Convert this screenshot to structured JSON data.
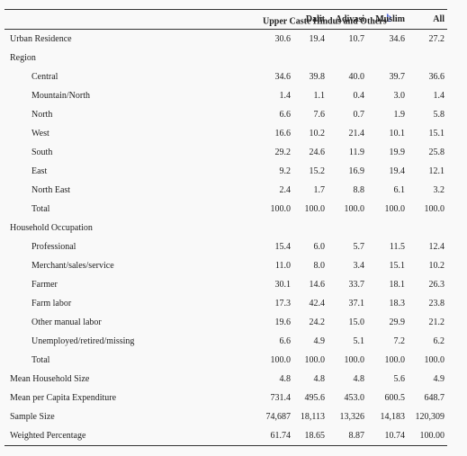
{
  "table": {
    "columns": [
      "Upper Caste Hindus and Others",
      "Dalit",
      "Adivasi",
      "Muslim",
      "All"
    ],
    "footnote": "b",
    "rows": [
      {
        "label": "Urban Residence",
        "values": [
          "30.6",
          "19.4",
          "10.7",
          "34.6",
          "27.2"
        ]
      },
      {
        "label": "Region",
        "subrows": [
          {
            "label": "Central",
            "values": [
              "34.6",
              "39.8",
              "40.0",
              "39.7",
              "36.6"
            ]
          },
          {
            "label": "Mountain/North",
            "values": [
              "1.4",
              "1.1",
              "0.4",
              "3.0",
              "1.4"
            ]
          },
          {
            "label": "North",
            "values": [
              "6.6",
              "7.6",
              "0.7",
              "1.9",
              "5.8"
            ]
          },
          {
            "label": "West",
            "values": [
              "16.6",
              "10.2",
              "21.4",
              "10.1",
              "15.1"
            ]
          },
          {
            "label": "South",
            "values": [
              "29.2",
              "24.6",
              "11.9",
              "19.9",
              "25.8"
            ]
          },
          {
            "label": "East",
            "values": [
              "9.2",
              "15.2",
              "16.9",
              "19.4",
              "12.1"
            ]
          },
          {
            "label": "North East",
            "values": [
              "2.4",
              "1.7",
              "8.8",
              "6.1",
              "3.2"
            ]
          },
          {
            "label": "Total",
            "values": [
              "100.0",
              "100.0",
              "100.0",
              "100.0",
              "100.0"
            ]
          }
        ]
      },
      {
        "label": "Household Occupation",
        "subrows": [
          {
            "label": "Professional",
            "values": [
              "15.4",
              "6.0",
              "5.7",
              "11.5",
              "12.4"
            ]
          },
          {
            "label": "Merchant/sales/service",
            "values": [
              "11.0",
              "8.0",
              "3.4",
              "15.1",
              "10.2"
            ]
          },
          {
            "label": "Farmer",
            "values": [
              "30.1",
              "14.6",
              "33.7",
              "18.1",
              "26.3"
            ]
          },
          {
            "label": "Farm labor",
            "values": [
              "17.3",
              "42.4",
              "37.1",
              "18.3",
              "23.8"
            ]
          },
          {
            "label": "Other manual labor",
            "values": [
              "19.6",
              "24.2",
              "15.0",
              "29.9",
              "21.2"
            ]
          },
          {
            "label": "Unemployed/retired/missing",
            "values": [
              "6.6",
              "4.9",
              "5.1",
              "7.2",
              "6.2"
            ]
          },
          {
            "label": "Total",
            "values": [
              "100.0",
              "100.0",
              "100.0",
              "100.0",
              "100.0"
            ]
          }
        ]
      },
      {
        "label": "Mean Household Size",
        "values": [
          "4.8",
          "4.8",
          "4.8",
          "5.6",
          "4.9"
        ]
      },
      {
        "label": "Mean per Capita Expenditure",
        "values": [
          "731.4",
          "495.6",
          "453.0",
          "600.5",
          "648.7"
        ]
      },
      {
        "label": "Sample Size",
        "values": [
          "74,687",
          "18,113",
          "13,326",
          "14,183",
          "120,309"
        ]
      },
      {
        "label": "Weighted Percentage",
        "values": [
          "61.74",
          "18.65",
          "8.87",
          "10.74",
          "100.00"
        ]
      }
    ]
  }
}
